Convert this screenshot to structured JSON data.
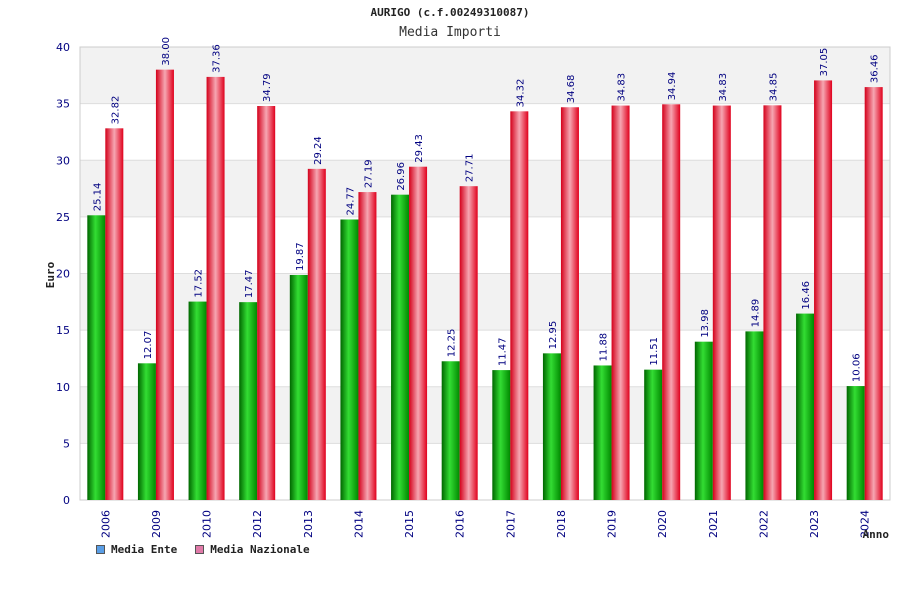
{
  "chart_data": {
    "type": "bar",
    "title": "AURIGO (c.f.00249310087)",
    "subtitle": "Media Importi",
    "ylabel": "Euro",
    "xlabel": "Anno",
    "ylim": [
      0,
      40
    ],
    "yticks": [
      0,
      5,
      10,
      15,
      20,
      25,
      30,
      35,
      40
    ],
    "categories": [
      "2006",
      "2009",
      "2010",
      "2012",
      "2013",
      "2014",
      "2015",
      "2016",
      "2017",
      "2018",
      "2019",
      "2020",
      "2021",
      "2022",
      "2023",
      "2024"
    ],
    "series": [
      {
        "name": "Media Ente",
        "color": "#00aa00",
        "values": [
          25.14,
          12.07,
          17.52,
          17.47,
          19.87,
          24.77,
          26.96,
          12.25,
          11.47,
          12.95,
          11.88,
          11.51,
          13.98,
          14.89,
          16.46,
          10.06
        ],
        "labels": [
          "25.14",
          "12.07",
          "17.52",
          "17.47",
          "19.87",
          "24.77",
          "26.96",
          "12.25",
          "11.47",
          "12.95",
          "11.88",
          "11.51",
          "13.98",
          "14.89",
          "16.46",
          "10.06"
        ]
      },
      {
        "name": "Media Nazionale",
        "color": "#e8001a",
        "values": [
          32.82,
          38.0,
          37.36,
          34.79,
          29.24,
          27.19,
          29.43,
          27.71,
          34.32,
          34.68,
          34.83,
          34.94,
          34.83,
          34.85,
          37.05,
          36.46
        ],
        "labels": [
          "32.82",
          "38.00",
          "37.36",
          "34.79",
          "29.24",
          "27.19",
          "29.43",
          "27.71",
          "34.32",
          "34.68",
          "34.83",
          "34.94",
          "34.83",
          "34.85",
          "37.05",
          "36.46"
        ]
      }
    ],
    "legend": [
      {
        "label": "Media Ente",
        "swatch": "#5a9ee6"
      },
      {
        "label": "Media Nazionale",
        "swatch": "#e07aa8"
      }
    ]
  }
}
